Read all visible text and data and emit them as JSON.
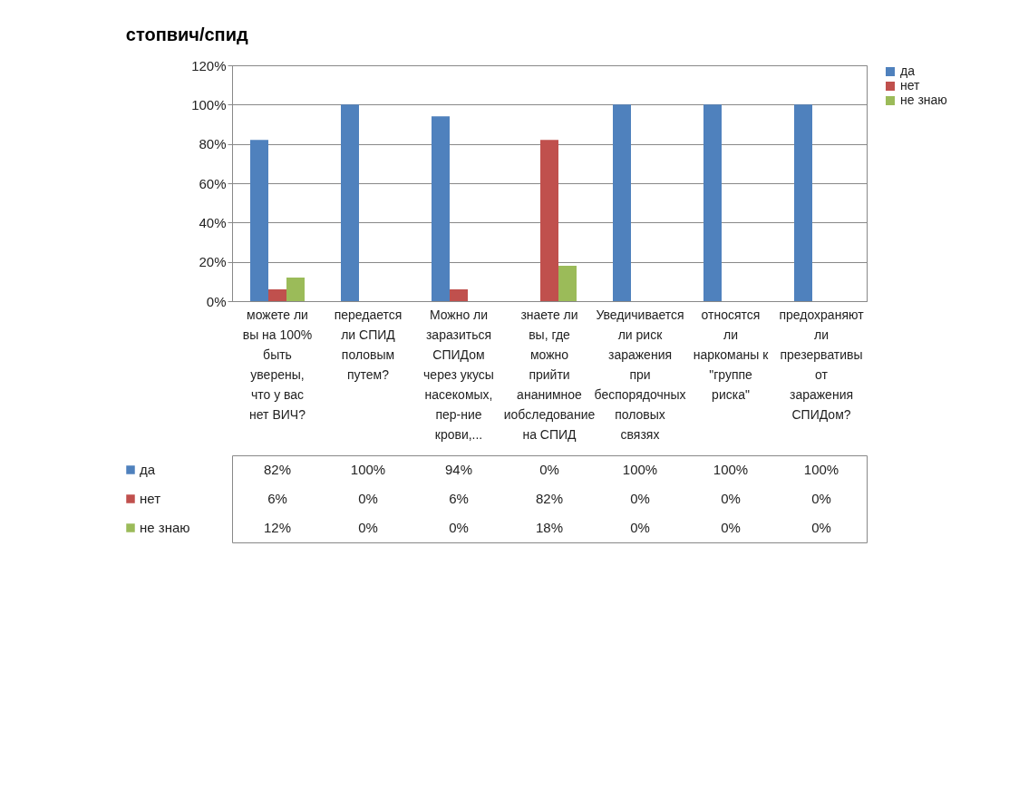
{
  "chart_data": {
    "type": "bar",
    "title": "стопвич/спид",
    "categories": [
      "можете ли вы на 100% быть уверены, что у вас нет ВИЧ?",
      "передается ли СПИД половым путем?",
      "Можно ли заразиться СПИДом через укусы насекомых, пер-ние крови,...",
      "знаете ли вы, где можно прийти ананимное иобследование на СПИД",
      "Уведичивается ли риск заражения при беспорядочных половых связях",
      "относятся ли наркоманы к \"группе риска\"",
      "предохраняют ли презервативы от заражения СПИДом?"
    ],
    "series": [
      {
        "name": "да",
        "color": "#4f81bd",
        "values": [
          82,
          100,
          94,
          0,
          100,
          100,
          100
        ],
        "value_labels": [
          "82%",
          "100%",
          "94%",
          "0%",
          "100%",
          "100%",
          "100%"
        ]
      },
      {
        "name": "нет",
        "color": "#c0504d",
        "values": [
          6,
          0,
          6,
          82,
          0,
          0,
          0
        ],
        "value_labels": [
          "6%",
          "0%",
          "6%",
          "82%",
          "0%",
          "0%",
          "0%"
        ]
      },
      {
        "name": "не знаю",
        "color": "#9bbb59",
        "values": [
          12,
          0,
          0,
          18,
          0,
          0,
          0
        ],
        "value_labels": [
          "12%",
          "0%",
          "0%",
          "18%",
          "0%",
          "0%",
          "0%"
        ]
      }
    ],
    "ylim": [
      0,
      120
    ],
    "yticks": [
      {
        "value": 0,
        "label": "0%"
      },
      {
        "value": 20,
        "label": "20%"
      },
      {
        "value": 40,
        "label": "40%"
      },
      {
        "value": 60,
        "label": "60%"
      },
      {
        "value": 80,
        "label": "80%"
      },
      {
        "value": 100,
        "label": "100%"
      },
      {
        "value": 120,
        "label": "120%"
      }
    ],
    "grid": "y",
    "legend": "right"
  }
}
